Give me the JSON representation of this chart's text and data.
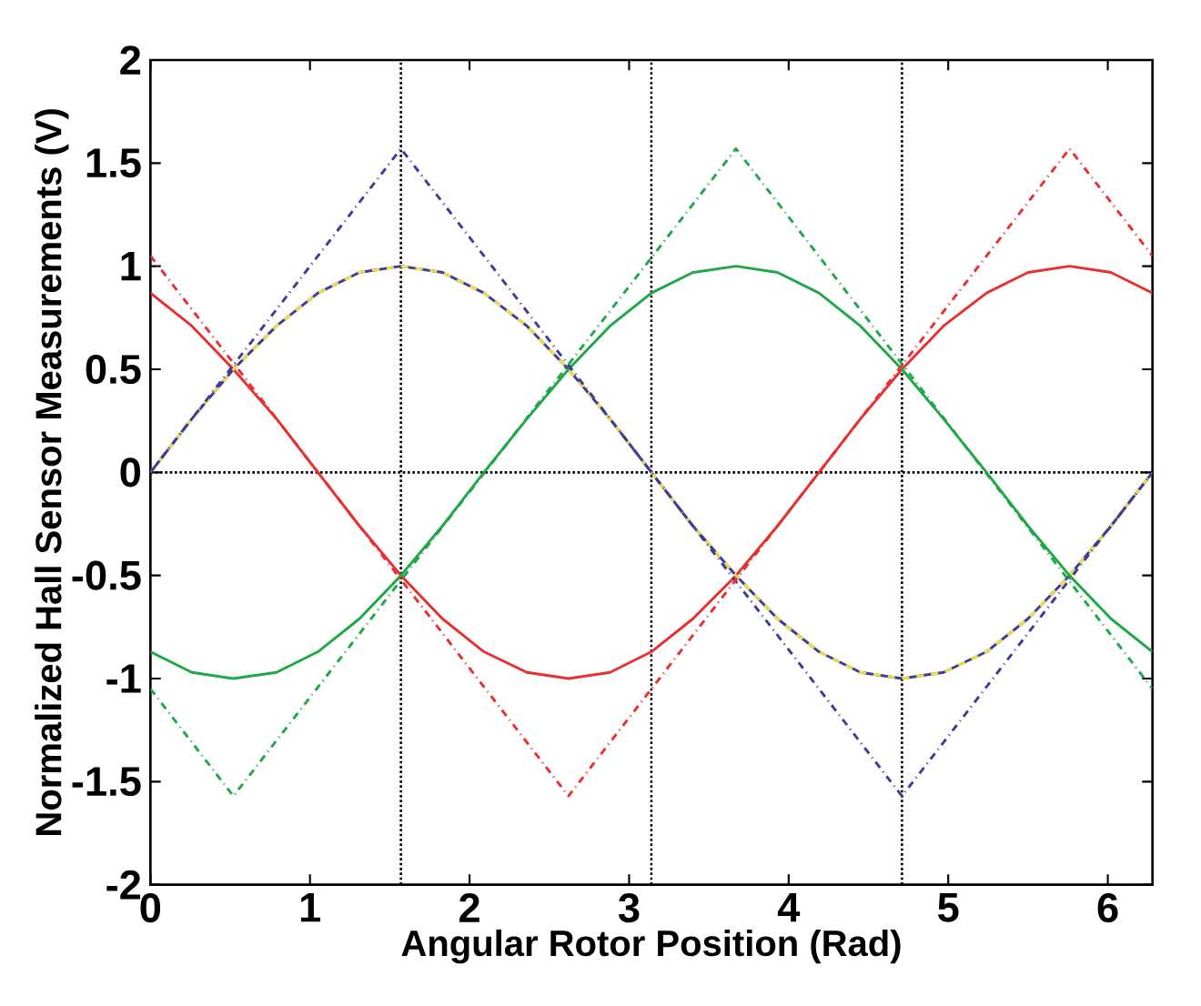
{
  "chart_data": {
    "type": "line",
    "xlabel": "Angular Rotor Position (Rad)",
    "ylabel": "Normalized Hall Sensor Measurements (V)",
    "xlim": [
      0,
      6.28
    ],
    "ylim": [
      -2,
      2
    ],
    "xticks": [
      0,
      1,
      2,
      3,
      4,
      5,
      6
    ],
    "yticks": [
      -2,
      -1.5,
      -1,
      -0.5,
      0,
      0.5,
      1,
      1.5,
      2
    ],
    "marker": "none",
    "x": [
      0,
      0.26,
      0.52,
      0.79,
      1.05,
      1.31,
      1.57,
      1.83,
      2.09,
      2.36,
      2.62,
      2.88,
      3.14,
      3.4,
      3.67,
      3.93,
      4.19,
      4.45,
      4.71,
      4.97,
      5.24,
      5.5,
      5.76,
      6.02,
      6.28
    ],
    "series": [
      {
        "color": "#3c3c9c",
        "line_style": "solid",
        "values": [
          0,
          0.26,
          0.5,
          0.71,
          0.87,
          0.97,
          1,
          0.97,
          0.87,
          0.71,
          0.5,
          0.26,
          0,
          -0.26,
          -0.5,
          -0.71,
          -0.87,
          -0.97,
          -1,
          -0.97,
          -0.87,
          -0.71,
          -0.5,
          -0.26,
          0
        ]
      },
      {
        "color": "#e83030",
        "line_style": "solid",
        "values": [
          0.87,
          0.71,
          0.5,
          0.26,
          0,
          -0.26,
          -0.5,
          -0.71,
          -0.87,
          -0.97,
          -1,
          -0.97,
          -0.87,
          -0.71,
          -0.5,
          -0.26,
          0,
          0.26,
          0.5,
          0.71,
          0.87,
          0.97,
          1,
          0.97,
          0.87
        ]
      },
      {
        "color": "#20a848",
        "line_style": "solid",
        "values": [
          -0.87,
          -0.97,
          -1,
          -0.97,
          -0.87,
          -0.71,
          -0.5,
          -0.26,
          0,
          0.26,
          0.5,
          0.71,
          0.87,
          0.97,
          1,
          0.97,
          0.87,
          0.71,
          0.5,
          0.26,
          0,
          -0.26,
          -0.5,
          -0.71,
          -0.87
        ]
      },
      {
        "color": "#f0e040",
        "line_style": "dashed",
        "values": [
          0,
          0.26,
          0.5,
          0.71,
          0.87,
          0.97,
          1,
          0.97,
          0.87,
          0.71,
          0.5,
          0.26,
          0,
          -0.26,
          -0.5,
          -0.71,
          -0.87,
          -0.97,
          -1,
          -0.97,
          -0.87,
          -0.71,
          -0.5,
          -0.26,
          0
        ]
      },
      {
        "color": "#3c3c9c",
        "line_style": "dashdot",
        "x": [
          0,
          1.57,
          4.71,
          6.28
        ],
        "values": [
          0,
          1.57,
          -1.57,
          0
        ]
      },
      {
        "color": "#e83030",
        "line_style": "dashdot",
        "x": [
          0,
          2.62,
          5.76,
          6.28
        ],
        "values": [
          1.05,
          -1.57,
          1.57,
          1.05
        ]
      },
      {
        "color": "#20a848",
        "line_style": "dashdot",
        "x": [
          0,
          0.52,
          3.67,
          6.28
        ],
        "values": [
          -1.05,
          -1.57,
          1.57,
          -1.05
        ]
      }
    ],
    "ref_lines": [
      {
        "axis": "x",
        "value": 1.57,
        "color": "#000000",
        "line_style": "dotted"
      },
      {
        "axis": "x",
        "value": 3.14,
        "color": "#000000",
        "line_style": "dotted"
      },
      {
        "axis": "x",
        "value": 4.71,
        "color": "#000000",
        "line_style": "dotted"
      },
      {
        "axis": "y",
        "value": 0,
        "color": "#000000",
        "line_style": "dotted"
      }
    ]
  }
}
